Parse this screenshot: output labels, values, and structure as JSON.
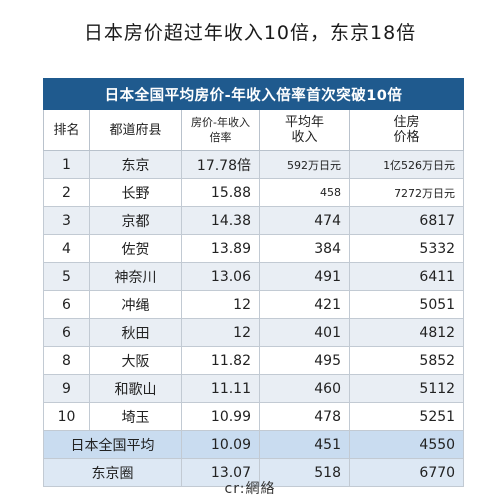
{
  "headline": "日本房价超过年收入10倍，东京18倍",
  "table": {
    "title": "日本全国平均房价-年收入倍率首次突破10倍",
    "headers": {
      "rank": "排名",
      "pref": "都道府县",
      "ratio_l1": "房价-年收入",
      "ratio_l2": "倍率",
      "income_l1": "平均年",
      "income_l2": "收入",
      "price_l1": "住房",
      "price_l2": "价格"
    },
    "rows": [
      {
        "rank": "1",
        "pref": "东京",
        "ratio": "17.78倍",
        "income": "592万日元",
        "price": "1亿526万日元"
      },
      {
        "rank": "2",
        "pref": "长野",
        "ratio": "15.88",
        "income": "458",
        "price": "7272万日元"
      },
      {
        "rank": "3",
        "pref": "京都",
        "ratio": "14.38",
        "income": "474",
        "price": "6817"
      },
      {
        "rank": "4",
        "pref": "佐贺",
        "ratio": "13.89",
        "income": "384",
        "price": "5332"
      },
      {
        "rank": "5",
        "pref": "神奈川",
        "ratio": "13.06",
        "income": "491",
        "price": "6411"
      },
      {
        "rank": "6",
        "pref": "冲绳",
        "ratio": "12",
        "income": "421",
        "price": "5051"
      },
      {
        "rank": "6",
        "pref": "秋田",
        "ratio": "12",
        "income": "401",
        "price": "4812"
      },
      {
        "rank": "8",
        "pref": "大阪",
        "ratio": "11.82",
        "income": "495",
        "price": "5852"
      },
      {
        "rank": "9",
        "pref": "和歌山",
        "ratio": "11.11",
        "income": "460",
        "price": "5112"
      },
      {
        "rank": "10",
        "pref": "埼玉",
        "ratio": "10.99",
        "income": "478",
        "price": "5251"
      }
    ],
    "summary": [
      {
        "label": "日本全国平均",
        "ratio": "10.09",
        "income": "451",
        "price": "4550"
      },
      {
        "label": "东京圈",
        "ratio": "13.07",
        "income": "518",
        "price": "6770"
      }
    ]
  },
  "footer": "cr:網絡"
}
